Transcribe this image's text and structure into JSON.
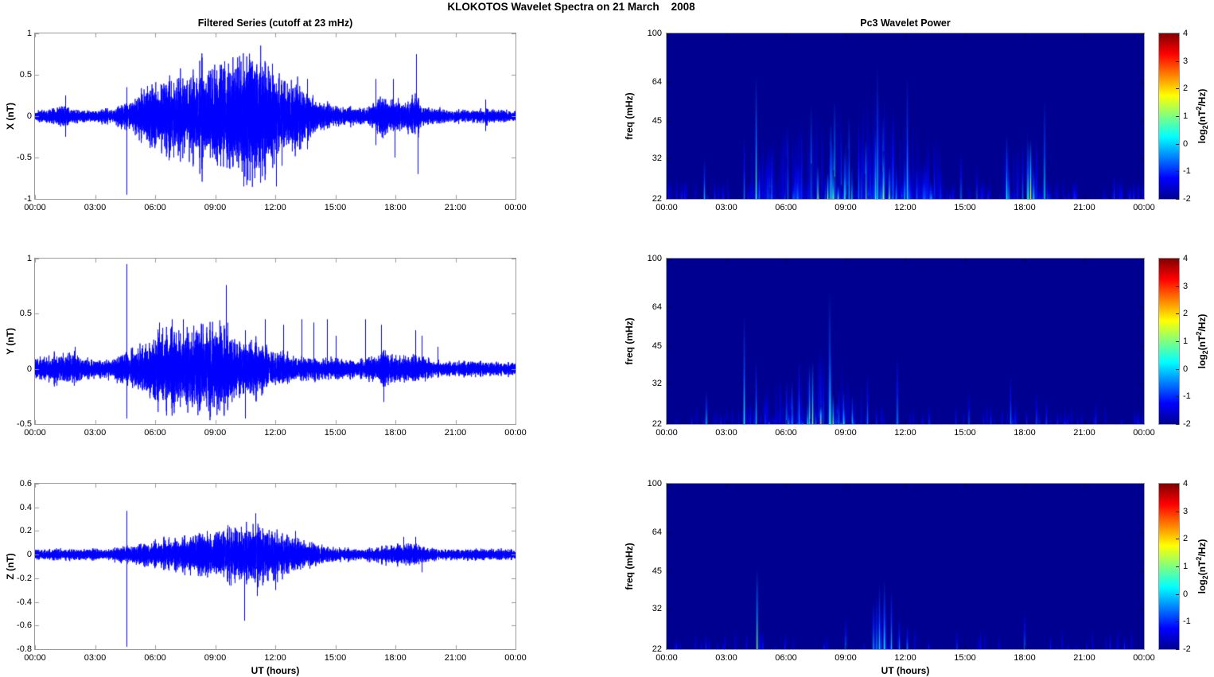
{
  "figure": {
    "title": "KLOKOTOS Wavelet Spectra on 21 March    2008",
    "left_title": "Filtered Series (cutoff at 23 mHz)",
    "right_title": "Pc3 Wavelet Power",
    "xlabel": "UT (hours)",
    "colorbar_label": {
      "prefix": "log",
      "sub": "2",
      "mid": "(nT",
      "sup": "2",
      "suffix": "/Hz)"
    }
  },
  "colors": {
    "line": "#0000ff",
    "frame": "#9a9a9a",
    "spec_background": "#000090",
    "jet": [
      "#000090",
      "#0000ff",
      "#00ffff",
      "#ffff00",
      "#ff0000",
      "#800000"
    ]
  },
  "time_axis": {
    "tick_labels": [
      "00:00",
      "03:00",
      "06:00",
      "09:00",
      "12:00",
      "15:00",
      "18:00",
      "21:00",
      "00:00"
    ],
    "tick_hours": [
      0,
      3,
      6,
      9,
      12,
      15,
      18,
      21,
      24
    ]
  },
  "chart_data": [
    {
      "type": "line",
      "name": "X filtered series",
      "ylabel": "X (nT)",
      "ylim": [
        -1,
        1
      ],
      "yticks": [
        1,
        0.5,
        0,
        -0.5,
        -1
      ],
      "x_range_hours": [
        0,
        24
      ],
      "envelope": [
        [
          0,
          0.05
        ],
        [
          1,
          0.06
        ],
        [
          1.4,
          0.1
        ],
        [
          1.8,
          0.06
        ],
        [
          3,
          0.05
        ],
        [
          4,
          0.06
        ],
        [
          4.6,
          0.1
        ],
        [
          5,
          0.14
        ],
        [
          5.5,
          0.2
        ],
        [
          6,
          0.26
        ],
        [
          6.5,
          0.3
        ],
        [
          7,
          0.32
        ],
        [
          7.5,
          0.34
        ],
        [
          8,
          0.37
        ],
        [
          8.5,
          0.4
        ],
        [
          9,
          0.44
        ],
        [
          9.5,
          0.48
        ],
        [
          10,
          0.44
        ],
        [
          10.5,
          0.52
        ],
        [
          11,
          0.5
        ],
        [
          11.5,
          0.44
        ],
        [
          12,
          0.36
        ],
        [
          12.5,
          0.3
        ],
        [
          13,
          0.28
        ],
        [
          13.5,
          0.22
        ],
        [
          14,
          0.13
        ],
        [
          14.5,
          0.1
        ],
        [
          15,
          0.08
        ],
        [
          16,
          0.07
        ],
        [
          16.5,
          0.06
        ],
        [
          17,
          0.12
        ],
        [
          17.3,
          0.2
        ],
        [
          17.7,
          0.1
        ],
        [
          18,
          0.16
        ],
        [
          18.4,
          0.1
        ],
        [
          19,
          0.18
        ],
        [
          19.3,
          0.08
        ],
        [
          20,
          0.06
        ],
        [
          21,
          0.05
        ],
        [
          22,
          0.05
        ],
        [
          22.5,
          0.07
        ],
        [
          23,
          0.05
        ],
        [
          24,
          0.05
        ]
      ],
      "spikes": [
        [
          4.55,
          -0.95
        ],
        [
          4.55,
          0.35
        ],
        [
          1.5,
          0.25
        ],
        [
          1.5,
          -0.25
        ],
        [
          6.9,
          -0.5
        ],
        [
          9.3,
          0.62
        ],
        [
          10.4,
          -0.85
        ],
        [
          10.75,
          0.65
        ],
        [
          11.05,
          0.6
        ],
        [
          12.05,
          -0.85
        ],
        [
          12.3,
          -0.6
        ],
        [
          13.6,
          0.45
        ],
        [
          13.6,
          -0.4
        ],
        [
          17.0,
          0.45
        ],
        [
          17.0,
          -0.35
        ],
        [
          17.9,
          0.45
        ],
        [
          17.95,
          -0.5
        ],
        [
          19.05,
          0.75
        ],
        [
          19.1,
          -0.7
        ],
        [
          22.5,
          0.2
        ],
        [
          22.5,
          -0.18
        ]
      ]
    },
    {
      "type": "line",
      "name": "Y filtered series",
      "ylabel": "Y (nT)",
      "ylim": [
        -0.5,
        1
      ],
      "yticks": [
        1,
        0.5,
        0,
        -0.5
      ],
      "x_range_hours": [
        0,
        24
      ],
      "envelope": [
        [
          0,
          0.06
        ],
        [
          0.8,
          0.08
        ],
        [
          1.5,
          0.1
        ],
        [
          2.2,
          0.07
        ],
        [
          3,
          0.05
        ],
        [
          4,
          0.07
        ],
        [
          4.6,
          0.1
        ],
        [
          5,
          0.13
        ],
        [
          5.5,
          0.17
        ],
        [
          6,
          0.2
        ],
        [
          6.5,
          0.23
        ],
        [
          7,
          0.26
        ],
        [
          7.5,
          0.28
        ],
        [
          8,
          0.27
        ],
        [
          8.5,
          0.28
        ],
        [
          9,
          0.26
        ],
        [
          9.5,
          0.24
        ],
        [
          10,
          0.21
        ],
        [
          10.5,
          0.19
        ],
        [
          11,
          0.17
        ],
        [
          11.5,
          0.14
        ],
        [
          12,
          0.12
        ],
        [
          12.5,
          0.1
        ],
        [
          13,
          0.08
        ],
        [
          14,
          0.07
        ],
        [
          15,
          0.06
        ],
        [
          16,
          0.05
        ],
        [
          17,
          0.07
        ],
        [
          17.5,
          0.1
        ],
        [
          18,
          0.07
        ],
        [
          19,
          0.08
        ],
        [
          19.5,
          0.07
        ],
        [
          20,
          0.05
        ],
        [
          21,
          0.04
        ],
        [
          22,
          0.05
        ],
        [
          23,
          0.04
        ],
        [
          24,
          0.04
        ]
      ],
      "spikes": [
        [
          4.55,
          0.95
        ],
        [
          4.55,
          -0.45
        ],
        [
          2.0,
          0.2
        ],
        [
          6.2,
          0.42
        ],
        [
          7.4,
          0.45
        ],
        [
          8.3,
          0.4
        ],
        [
          9.55,
          0.76
        ],
        [
          9.6,
          -0.35
        ],
        [
          10.5,
          -0.45
        ],
        [
          10.5,
          0.35
        ],
        [
          11.5,
          0.45
        ],
        [
          12.4,
          0.4
        ],
        [
          13.3,
          0.45
        ],
        [
          13.9,
          0.42
        ],
        [
          14.6,
          0.45
        ],
        [
          15.0,
          0.3
        ],
        [
          16.5,
          0.45
        ],
        [
          17.3,
          0.4
        ],
        [
          17.4,
          -0.3
        ],
        [
          19.0,
          0.35
        ],
        [
          19.3,
          0.3
        ],
        [
          20.1,
          0.2
        ]
      ]
    },
    {
      "type": "line",
      "name": "Z filtered series",
      "ylabel": "Z (nT)",
      "ylim": [
        -0.8,
        0.6
      ],
      "yticks": [
        0.6,
        0.4,
        0.2,
        0,
        -0.2,
        -0.4,
        -0.6,
        -0.8
      ],
      "x_range_hours": [
        0,
        24
      ],
      "envelope": [
        [
          0,
          0.03
        ],
        [
          2,
          0.03
        ],
        [
          3.5,
          0.03
        ],
        [
          4.5,
          0.05
        ],
        [
          5,
          0.05
        ],
        [
          6,
          0.07
        ],
        [
          6.5,
          0.08
        ],
        [
          7,
          0.09
        ],
        [
          7.5,
          0.1
        ],
        [
          8,
          0.11
        ],
        [
          8.5,
          0.11
        ],
        [
          9,
          0.12
        ],
        [
          9.5,
          0.14
        ],
        [
          10,
          0.14
        ],
        [
          10.5,
          0.16
        ],
        [
          11,
          0.19
        ],
        [
          11.3,
          0.16
        ],
        [
          11.6,
          0.14
        ],
        [
          12,
          0.14
        ],
        [
          12.5,
          0.11
        ],
        [
          13,
          0.09
        ],
        [
          13.5,
          0.07
        ],
        [
          14,
          0.06
        ],
        [
          14.5,
          0.05
        ],
        [
          15,
          0.04
        ],
        [
          16,
          0.03
        ],
        [
          17,
          0.04
        ],
        [
          17.5,
          0.05
        ],
        [
          18,
          0.055
        ],
        [
          18.5,
          0.055
        ],
        [
          19,
          0.06
        ],
        [
          19.5,
          0.05
        ],
        [
          20,
          0.03
        ],
        [
          21,
          0.03
        ],
        [
          22,
          0.035
        ],
        [
          23,
          0.03
        ],
        [
          24,
          0.03
        ]
      ],
      "spikes": [
        [
          4.55,
          0.37
        ],
        [
          4.55,
          -0.78
        ],
        [
          8.6,
          0.2
        ],
        [
          9.6,
          0.25
        ],
        [
          10.45,
          -0.56
        ],
        [
          11.0,
          0.35
        ],
        [
          11.1,
          -0.35
        ],
        [
          12.0,
          -0.3
        ],
        [
          13.0,
          0.2
        ],
        [
          18.4,
          0.15
        ],
        [
          19.0,
          0.15
        ],
        [
          19.3,
          -0.15
        ]
      ]
    },
    {
      "type": "heatmap",
      "name": "X Pc3 wavelet power",
      "ylabel": "freq (mHz)",
      "freq_lim": [
        22,
        100
      ],
      "freq_ticks": [
        100,
        64,
        45,
        32,
        22
      ],
      "clim": [
        -2,
        4
      ],
      "color_ticks": [
        4,
        3,
        2,
        1,
        0,
        -1,
        -2
      ],
      "bursts": [
        {
          "t0": 4.3,
          "t1": 13.9,
          "count": 170,
          "center": 9.3,
          "sigma": 3.4,
          "fmax": 62,
          "imax": 0.75
        },
        {
          "t0": 16.7,
          "t1": 19.4,
          "count": 20,
          "center": 18.1,
          "sigma": 1.2,
          "fmax": 50,
          "imax": 0.55
        }
      ],
      "streaks": [
        [
          1.9,
          32,
          0.4
        ],
        [
          3.9,
          40,
          0.3
        ],
        [
          4.5,
          68,
          0.6
        ],
        [
          7.6,
          30,
          0.72
        ],
        [
          8.1,
          28,
          0.7
        ],
        [
          10.6,
          75,
          0.5
        ],
        [
          10.9,
          34,
          0.72
        ],
        [
          11.2,
          30,
          0.68
        ],
        [
          12.1,
          68,
          0.45
        ],
        [
          14.8,
          35,
          0.3
        ],
        [
          15.6,
          30,
          0.25
        ],
        [
          17.1,
          40,
          0.5
        ],
        [
          18.3,
          38,
          0.85
        ],
        [
          19.0,
          55,
          0.5
        ],
        [
          20.5,
          26,
          0.18
        ],
        [
          22.5,
          28,
          0.2
        ],
        [
          23.3,
          25,
          0.15
        ]
      ],
      "grass": 150
    },
    {
      "type": "heatmap",
      "name": "Y Pc3 wavelet power",
      "ylabel": "freq (mHz)",
      "freq_lim": [
        22,
        100
      ],
      "freq_ticks": [
        100,
        64,
        45,
        32,
        22
      ],
      "clim": [
        -2,
        4
      ],
      "color_ticks": [
        4,
        3,
        2,
        1,
        0,
        -1,
        -2
      ],
      "bursts": [
        {
          "t0": 4.9,
          "t1": 9.8,
          "count": 80,
          "center": 7.6,
          "sigma": 1.9,
          "fmax": 46,
          "imax": 0.8
        }
      ],
      "streaks": [
        [
          2.0,
          30,
          0.45
        ],
        [
          3.9,
          60,
          0.5
        ],
        [
          4.5,
          40,
          0.4
        ],
        [
          7.75,
          26,
          1.0
        ],
        [
          8.2,
          75,
          0.55
        ],
        [
          10.1,
          35,
          0.3
        ],
        [
          11.6,
          42,
          0.35
        ],
        [
          13.2,
          26,
          0.2
        ],
        [
          15.2,
          30,
          0.25
        ],
        [
          16.3,
          26,
          0.18
        ],
        [
          17.3,
          35,
          0.3
        ],
        [
          18.6,
          30,
          0.25
        ],
        [
          19.1,
          28,
          0.2
        ],
        [
          21.5,
          24,
          0.12
        ]
      ],
      "grass": 90
    },
    {
      "type": "heatmap",
      "name": "Z Pc3 wavelet power",
      "ylabel": "freq (mHz)",
      "freq_lim": [
        22,
        100
      ],
      "freq_ticks": [
        100,
        64,
        45,
        32,
        22
      ],
      "clim": [
        -2,
        4
      ],
      "color_ticks": [
        4,
        3,
        2,
        1,
        0,
        -1,
        -2
      ],
      "bursts": [
        {
          "t0": 10.2,
          "t1": 12.3,
          "count": 12,
          "center": 11.0,
          "sigma": 1.0,
          "fmax": 40,
          "imax": 0.45
        }
      ],
      "streaks": [
        [
          4.55,
          46,
          0.7
        ],
        [
          9.0,
          30,
          0.3
        ],
        [
          10.4,
          34,
          0.4
        ],
        [
          10.7,
          40,
          0.45
        ],
        [
          10.95,
          42,
          0.5
        ],
        [
          11.3,
          38,
          0.4
        ],
        [
          11.7,
          30,
          0.3
        ],
        [
          12.1,
          28,
          0.3
        ],
        [
          14.6,
          26,
          0.2
        ],
        [
          18.0,
          32,
          0.3
        ],
        [
          19.3,
          25,
          0.15
        ],
        [
          22.3,
          26,
          0.15
        ]
      ],
      "grass": 45
    }
  ]
}
